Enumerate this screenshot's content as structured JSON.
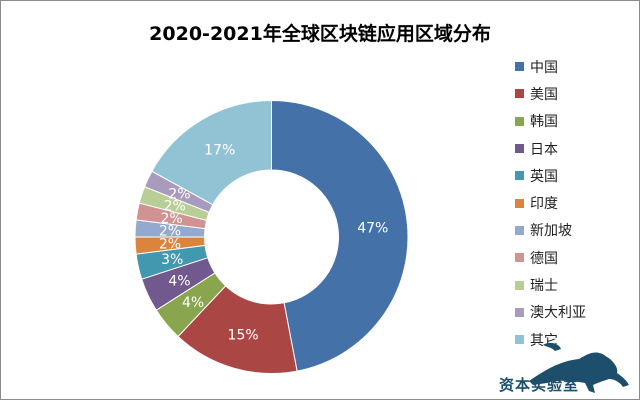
{
  "chart_data": {
    "type": "pie",
    "donut": true,
    "title": "2020-2021年全球区块链应用区域分布",
    "categories": [
      "中国",
      "美国",
      "韩国",
      "日本",
      "英国",
      "印度",
      "新加坡",
      "德国",
      "瑞士",
      "澳大利亚",
      "其它"
    ],
    "values": [
      47,
      15,
      4,
      4,
      3,
      2,
      2,
      2,
      2,
      2,
      17
    ],
    "labels": [
      "47%",
      "15%",
      "4%",
      "4%",
      "3%",
      "2%",
      "2%",
      "2%",
      "2%",
      "2%",
      "17%"
    ],
    "colors": [
      "#4472a8",
      "#aa4643",
      "#89a54e",
      "#71588f",
      "#4198af",
      "#db843d",
      "#93a9cf",
      "#d19392",
      "#b9cd96",
      "#a99bbd",
      "#92c3d5"
    ],
    "legend_position": "right"
  },
  "watermark": "资本实验室"
}
